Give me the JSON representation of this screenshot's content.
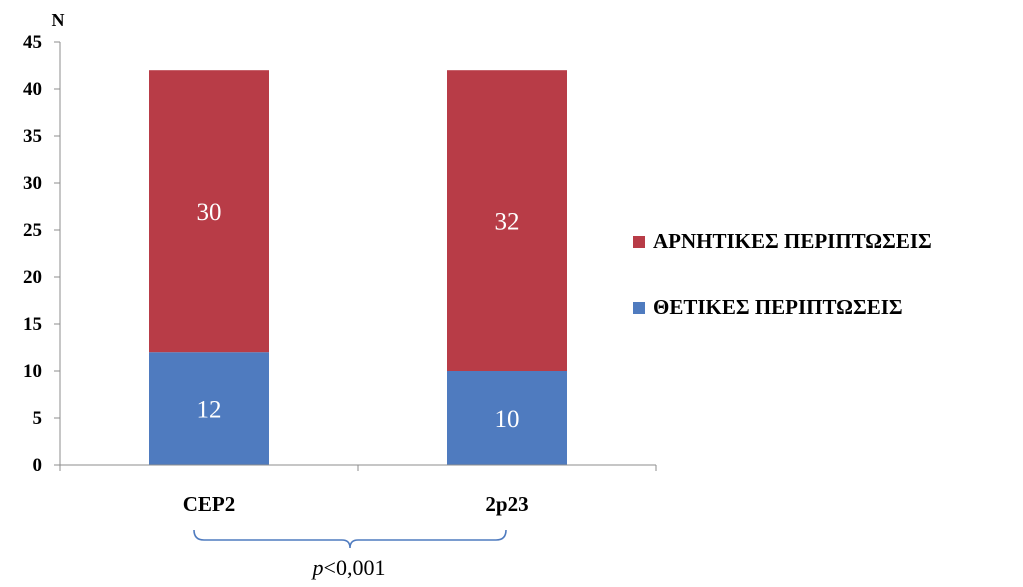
{
  "chart_data": {
    "type": "bar",
    "stacked": true,
    "categories": [
      "CEP2",
      "2p23"
    ],
    "series": [
      {
        "name": "ΘΕΤΙΚΕΣ ΠΕΡΙΠΤΩΣΕΙΣ",
        "values": [
          12,
          10
        ],
        "color": "#4f7bbf"
      },
      {
        "name": "ΑΡΝΗΤΙΚΕΣ ΠΕΡΙΠΤΩΣΕΙΣ",
        "values": [
          30,
          32
        ],
        "color": "#b83c47"
      }
    ],
    "legend_order": [
      "ΑΡΝΗΤΙΚΕΣ ΠΕΡΙΠΤΩΣΕΙΣ",
      "ΘΕΤΙΚΕΣ ΠΕΡΙΠΤΩΣΕΙΣ"
    ],
    "ylabel": "N",
    "ylim": [
      0,
      45
    ],
    "yticks": [
      0,
      5,
      10,
      15,
      20,
      25,
      30,
      35,
      40,
      45
    ],
    "grid": false,
    "legend_position": "right",
    "annotation": {
      "prefix": "p",
      "text": "<0,001"
    }
  }
}
